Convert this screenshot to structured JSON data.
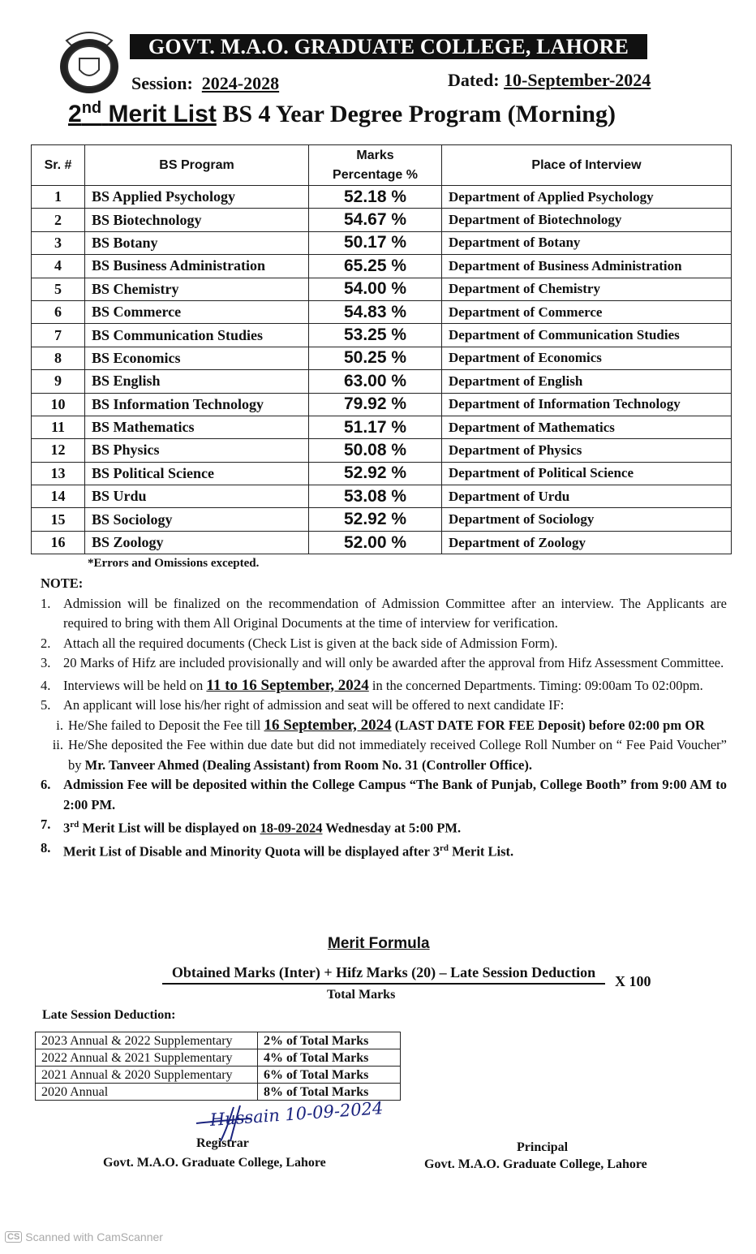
{
  "header": {
    "college": "GOVT. M.A.O. GRADUATE COLLEGE, LAHORE",
    "session_label": "Session:",
    "session": "2024-2028",
    "dated_label": "Dated:",
    "dated": "10-September-2024",
    "heading_num": "2",
    "heading_sup": "nd",
    "heading_merit": "Merit List",
    "heading_rest": "BS 4 Year Degree Program (Morning)",
    "logo_text": "GOVT. M.A.O. GRADUATE COLLEGE LAHORE"
  },
  "table": {
    "headers": {
      "sr": "Sr. #",
      "program": "BS Program",
      "marks_1": "Marks",
      "marks_2": "Percentage %",
      "place": "Place of Interview"
    },
    "rows": [
      {
        "sr": "1",
        "program": "BS Applied Psychology",
        "marks": "52.18 %",
        "place": "Department of Applied Psychology"
      },
      {
        "sr": "2",
        "program": "BS Biotechnology",
        "marks": "54.67 %",
        "place": "Department of Biotechnology"
      },
      {
        "sr": "3",
        "program": "BS Botany",
        "marks": "50.17 %",
        "place": "Department of Botany"
      },
      {
        "sr": "4",
        "program": "BS Business Administration",
        "marks": "65.25 %",
        "place": "Department of Business Administration"
      },
      {
        "sr": "5",
        "program": "BS Chemistry",
        "marks": "54.00 %",
        "place": "Department of Chemistry"
      },
      {
        "sr": "6",
        "program": "BS Commerce",
        "marks": "54.83 %",
        "place": "Department of Commerce"
      },
      {
        "sr": "7",
        "program": "BS Communication Studies",
        "marks": "53.25 %",
        "place": "Department of Communication Studies"
      },
      {
        "sr": "8",
        "program": "BS Economics",
        "marks": "50.25 %",
        "place": "Department of Economics"
      },
      {
        "sr": "9",
        "program": "BS English",
        "marks": "63.00 %",
        "place": "Department of English"
      },
      {
        "sr": "10",
        "program": "BS Information Technology",
        "marks": "79.92 %",
        "place": "Department of Information Technology"
      },
      {
        "sr": "11",
        "program": "BS Mathematics",
        "marks": "51.17 %",
        "place": "Department of Mathematics"
      },
      {
        "sr": "12",
        "program": "BS Physics",
        "marks": "50.08 %",
        "place": "Department of Physics"
      },
      {
        "sr": "13",
        "program": "BS Political Science",
        "marks": "52.92 %",
        "place": "Department of Political Science"
      },
      {
        "sr": "14",
        "program": "BS Urdu",
        "marks": "53.08 %",
        "place": "Department of Urdu"
      },
      {
        "sr": "15",
        "program": "BS Sociology",
        "marks": "52.92 %",
        "place": "Department of Sociology"
      },
      {
        "sr": "16",
        "program": "BS Zoology",
        "marks": "52.00 %",
        "place": "Department of Zoology"
      }
    ],
    "errors_note": "*Errors and Omissions excepted."
  },
  "notes": {
    "title": "NOTE:",
    "n1": "Admission will be finalized on the recommendation of Admission Committee after an interview. The Applicants are required to bring with them All Original Documents at the time of interview for verification.",
    "n2": "Attach all the required documents (Check List is given at the back side of Admission Form).",
    "n3": "20 Marks of Hifz are included provisionally and will only be awarded after the approval from Hifz Assessment Committee.",
    "n4_a": "Interviews will be held on ",
    "n4_b": "11 to 16 September, 2024",
    "n4_c": " in the concerned Departments. Timing: 09:00am To 02:00pm.",
    "n5": "An applicant will lose his/her right of admission and seat will be offered to next candidate IF:",
    "n5i_a": "He/She failed to Deposit the Fee till ",
    "n5i_b": "16 September, 2024",
    "n5i_c": " (LAST DATE FOR FEE Deposit) before 02:00 pm  OR",
    "n5ii_a": "He/She deposited the Fee within due date but did not immediately received College Roll Number on “ Fee Paid Voucher” by ",
    "n5ii_b": "Mr. Tanveer Ahmed (Dealing Assistant) from Room No. 31 (Controller Office).",
    "n6": "Admission Fee will be deposited within the College Campus “The Bank of Punjab, College Booth” from 9:00 AM to 2:00 PM.",
    "n7_a": "3",
    "n7_sup": "rd",
    "n7_b": " Merit List will be displayed on ",
    "n7_c": "18-09-2024",
    "n7_d": " Wednesday at 5:00 PM.",
    "n8_a": "Merit List of Disable and Minority Quota will be displayed after 3",
    "n8_sup": "rd",
    "n8_b": " Merit List.",
    "nums": [
      "1.",
      "2.",
      "3.",
      "4.",
      "5.",
      "i.",
      "ii.",
      "6.",
      "7.",
      "8."
    ]
  },
  "formula": {
    "title": "Merit Formula",
    "numerator": "Obtained Marks (Inter) + Hifz Marks (20) – Late Session Deduction",
    "multiplier": "X 100",
    "denominator": "Total Marks"
  },
  "late_session": {
    "label": "Late Session Deduction:",
    "rows": [
      {
        "session": "2023 Annual & 2022 Supplementary",
        "deduction": "2% of Total Marks"
      },
      {
        "session": "2022 Annual & 2021 Supplementary",
        "deduction": "4% of Total Marks"
      },
      {
        "session": "2021 Annual & 2020 Supplementary",
        "deduction": "6% of Total Marks"
      },
      {
        "session": "2020 Annual",
        "deduction": "8% of Total Marks"
      }
    ]
  },
  "signatures": {
    "registrar_signature": "Hussain 10-09-2024",
    "registrar": "Registrar",
    "registrar_college": "Govt. M.A.O. Graduate College, Lahore",
    "principal": "Principal",
    "principal_college": "Govt. M.A.O. Graduate College, Lahore"
  },
  "watermark": {
    "icon": "CS",
    "text": "Scanned with CamScanner"
  }
}
